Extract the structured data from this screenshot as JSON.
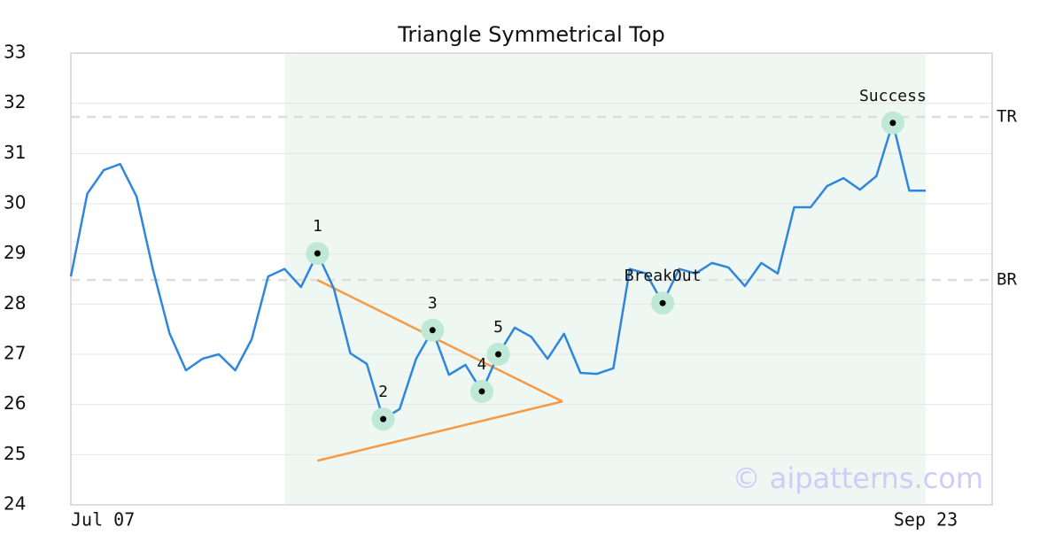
{
  "chart_data": {
    "type": "line",
    "title": "Triangle Symmetrical Top",
    "categories": [
      "Jul 07",
      null,
      null,
      null,
      null,
      null,
      null,
      null,
      null,
      null,
      null,
      null,
      null,
      null,
      null,
      null,
      null,
      null,
      null,
      null,
      null,
      null,
      null,
      null,
      null,
      null,
      null,
      null,
      null,
      null,
      null,
      null,
      null,
      null,
      null,
      null,
      null,
      null,
      null,
      null,
      null,
      null,
      null,
      null,
      null,
      null,
      null,
      null,
      null,
      null,
      null,
      null,
      "Sep 23"
    ],
    "values": [
      28.55,
      30.2,
      30.67,
      30.79,
      30.14,
      28.68,
      27.42,
      26.68,
      26.91,
      27.0,
      26.68,
      27.3,
      28.55,
      28.7,
      28.34,
      29.01,
      28.31,
      27.02,
      26.81,
      25.71,
      25.91,
      26.91,
      27.48,
      26.59,
      26.79,
      26.26,
      27.0,
      27.53,
      27.35,
      26.91,
      27.41,
      26.63,
      26.61,
      26.72,
      28.7,
      28.61,
      28.02,
      28.7,
      28.61,
      28.82,
      28.73,
      28.36,
      28.82,
      28.61,
      29.93,
      29.93,
      30.35,
      30.51,
      30.28,
      30.55,
      31.61,
      30.26,
      30.26
    ],
    "color": "#2e86de",
    "ylim": [
      24,
      33
    ],
    "yticks": [
      24,
      25,
      26,
      27,
      28,
      29,
      30,
      31,
      32,
      33
    ],
    "grid": true,
    "shaded_range": [
      13,
      52
    ],
    "shade_color": "#eef7f2",
    "annotations": [
      {
        "index": 15,
        "label": "1"
      },
      {
        "index": 19,
        "label": "2"
      },
      {
        "index": 22,
        "label": "3"
      },
      {
        "index": 25,
        "label": "4"
      },
      {
        "index": 26,
        "label": "5"
      },
      {
        "index": 36,
        "label": "BreakOut"
      },
      {
        "index": 50,
        "label": "Success"
      }
    ],
    "annotation_color": "#bfe8d6",
    "reference_lines": [
      {
        "label": "TR",
        "value": 31.73
      },
      {
        "label": "BR",
        "value": 28.48
      }
    ],
    "triangle": {
      "color": "#f59a45",
      "upper": {
        "x": [
          15,
          29.9
        ],
        "values": [
          28.48,
          26.06
        ]
      },
      "lower": {
        "x": [
          15,
          29.9
        ],
        "values": [
          24.88,
          26.06
        ]
      }
    },
    "watermark": "© aipatterns.com"
  }
}
